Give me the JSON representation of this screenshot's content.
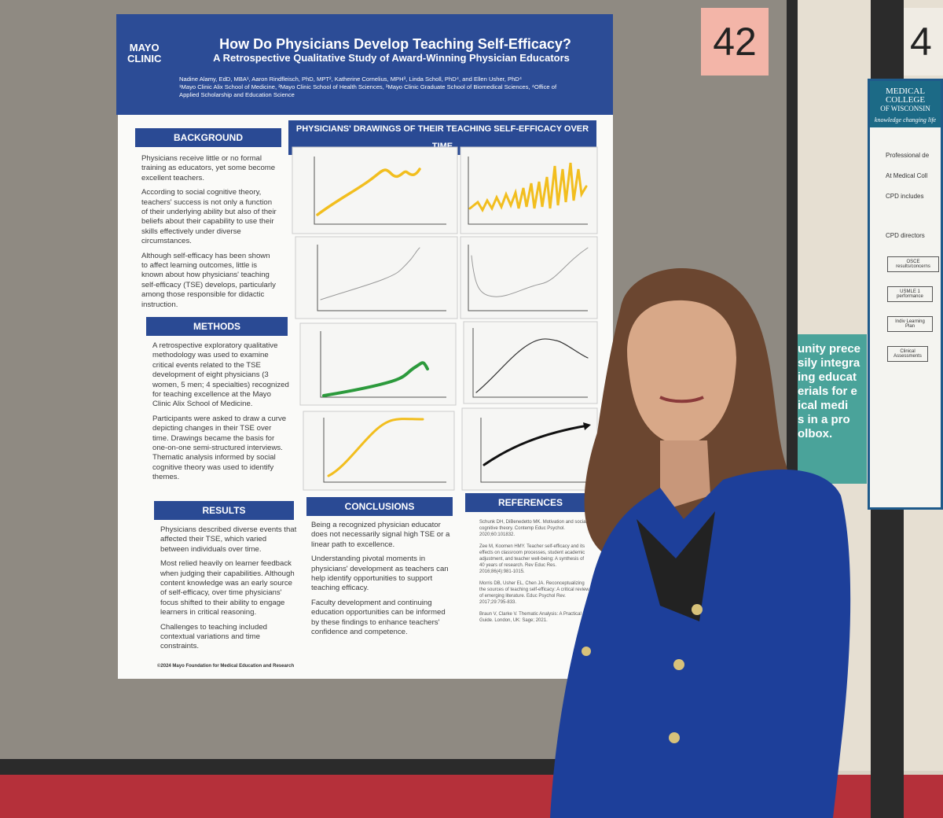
{
  "booth_number": "42",
  "neighbor_booth_number": "4",
  "poster": {
    "logo": [
      "MAYO",
      "CLINIC"
    ],
    "title": "How Do Physicians Develop Teaching Self-Efficacy?",
    "subtitle": "A Retrospective Qualitative Study of Award-Winning Physician Educators",
    "authors": "Nadine Alamy, EdD, MBA¹, Aaron Rindfleisch, PhD, MPT², Katherine Cornelius, MPH³, Linda Scholl, PhD⁴, and Ellen Usher, PhD⁴",
    "affiliations": "¹Mayo Clinic Alix School of Medicine, ²Mayo Clinic School of Health Sciences, ³Mayo Clinic Graduate School of Biomedical Sciences, ⁴Office of Applied Scholarship and Education Science",
    "background": {
      "heading": "BACKGROUND",
      "paragraphs": [
        "Physicians receive little or no formal training as educators, yet some become excellent teachers.",
        "According to social cognitive theory, teachers' success is not only a function of their underlying ability but also of their beliefs about their capability to use their skills effectively under diverse circumstances.",
        "Although self-efficacy has been shown to affect learning outcomes, little is known about how physicians' teaching self-efficacy (TSE) develops, particularly among those responsible for didactic instruction."
      ]
    },
    "methods": {
      "heading": "METHODS",
      "paragraphs": [
        "A retrospective exploratory qualitative methodology was used to examine critical events related to the TSE development of eight physicians (3 women, 5 men; 4 specialties) recognized for teaching excellence at the Mayo Clinic Alix School of Medicine.",
        "Participants were asked to draw a curve depicting changes in their TSE over time. Drawings became the basis for one-on-one semi-structured interviews. Thematic analysis informed by social cognitive theory was used to identify themes."
      ]
    },
    "drawings": {
      "heading": "PHYSICIANS' DRAWINGS OF THEIR TEACHING SELF-EFFICACY OVER TIME"
    },
    "results": {
      "heading": "RESULTS",
      "paragraphs": [
        "Physicians described diverse events that affected their TSE, which varied between individuals over time.",
        "Most relied heavily on learner feedback when judging their capabilities. Although content knowledge was an early source of self-efficacy, over time physicians' focus shifted to their ability to engage learners in critical reasoning.",
        "Challenges to teaching included contextual variations and time constraints."
      ]
    },
    "conclusions": {
      "heading": "CONCLUSIONS",
      "paragraphs": [
        "Being a recognized physician educator does not necessarily signal high TSE or a linear path to excellence.",
        "Understanding pivotal moments in physicians' development as teachers can help identify opportunities to support teaching efficacy.",
        "Faculty development and continuing education opportunities can be informed by these findings to enhance teachers' confidence and competence."
      ]
    },
    "references": {
      "heading": "REFERENCES",
      "items": [
        "Schunk DH, DiBenedetto MK. Motivation and social cognitive theory. Contemp Educ Psychol. 2020;60:101832.",
        "Zee M, Koomen HMY. Teacher self-efficacy and its effects on classroom processes, student academic adjustment, and teacher well-being: A synthesis of 40 years of research. Rev Educ Res. 2016;86(4):981-1015.",
        "Morris DB, Usher EL, Chen JA. Reconceptualizing the sources of teaching self-efficacy: A critical review of emerging literature. Educ Psychol Rev. 2017;29:795-833.",
        "Braun V, Clarke V. Thematic Analysis: A Practical Guide. London, UK: Sage; 2021."
      ]
    },
    "footer": "©2024 Mayo Foundation for Medical Education and Research"
  },
  "side_poster": {
    "logo": [
      "MEDICAL",
      "COLLEGE",
      "OF WISCONSIN"
    ],
    "tagline": "knowledge changing life",
    "bullets": [
      "Professional de",
      "At Medical Coll",
      "CPD includes",
      "CPD directors"
    ],
    "boxes": [
      "OSCE results/concerns",
      "USMLE 1 performance",
      "Indiv Learning Plan",
      "Clinical Assessments"
    ],
    "green_panel": [
      "unity prece",
      "sily integra",
      "ing educat",
      "erials for e",
      "ical medi",
      "s in a pro",
      "olbox."
    ]
  }
}
